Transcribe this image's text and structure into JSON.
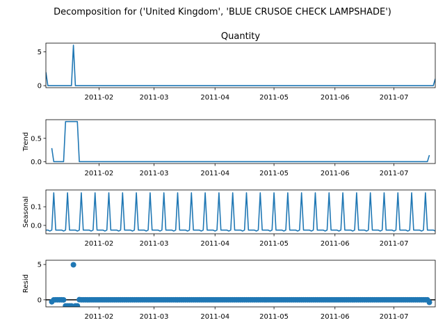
{
  "figure_title": "Decomposition for ('United Kingdom', 'BLUE CRUSOE CHECK LAMPSHADE')",
  "colors": {
    "series": "#1f77b4",
    "axis": "#000000",
    "zero_line": "#000000"
  },
  "chart_data": [
    {
      "type": "line",
      "title": "Quantity",
      "ylabel": "",
      "xlim": [
        "2011-01-05",
        "2011-07-22"
      ],
      "ylim": [
        -0.3,
        6.3
      ],
      "yticks": [
        0,
        5
      ],
      "xticks": [
        "2011-02",
        "2011-03",
        "2011-04",
        "2011-05",
        "2011-06",
        "2011-07"
      ],
      "series": [
        {
          "x": [
            "2011-01-05",
            "2011-01-06",
            "2011-01-18",
            "2011-01-19",
            "2011-01-20",
            "2011-07-21",
            "2011-07-22"
          ],
          "y": [
            2,
            0,
            0,
            6,
            0,
            0,
            1
          ]
        }
      ]
    },
    {
      "type": "line",
      "title": "",
      "ylabel": "Trend",
      "xlim": [
        "2011-01-05",
        "2011-07-22"
      ],
      "ylim": [
        -0.04,
        0.9
      ],
      "yticks": [
        0.0,
        0.5
      ],
      "ytick_labels": [
        "0.0",
        "0.5"
      ],
      "xticks": [
        "2011-02",
        "2011-03",
        "2011-04",
        "2011-05",
        "2011-06",
        "2011-07"
      ],
      "series": [
        {
          "x": [
            "2011-01-08",
            "2011-01-09",
            "2011-01-14",
            "2011-01-15",
            "2011-01-21",
            "2011-01-22",
            "2011-07-18",
            "2011-07-19"
          ],
          "y": [
            0.29,
            0.0,
            0.0,
            0.86,
            0.86,
            0.0,
            0.0,
            0.14
          ]
        }
      ]
    },
    {
      "type": "line",
      "title": "",
      "ylabel": "Seasonal",
      "xlim": [
        "2011-01-05",
        "2011-07-22"
      ],
      "ylim": [
        -0.045,
        0.19
      ],
      "yticks": [
        0.0,
        0.1
      ],
      "ytick_labels": [
        "0.0",
        "0.1"
      ],
      "xticks": [
        "2011-02",
        "2011-03",
        "2011-04",
        "2011-05",
        "2011-06",
        "2011-07"
      ],
      "pattern": {
        "start": "2011-01-05",
        "period_days": 7,
        "one_cycle": [
          -0.025,
          -0.025,
          -0.03,
          -0.025,
          0.175,
          -0.025,
          -0.025
        ]
      }
    },
    {
      "type": "scatter",
      "title": "",
      "ylabel": "Resid",
      "xlim": [
        "2011-01-05",
        "2011-07-22"
      ],
      "ylim": [
        -1.0,
        5.6
      ],
      "yticks": [
        0,
        5
      ],
      "xticks": [
        "2011-02",
        "2011-03",
        "2011-04",
        "2011-05",
        "2011-06",
        "2011-07"
      ],
      "reference_line": 0,
      "range": [
        "2011-01-08",
        "2011-07-19"
      ],
      "default_value": 0,
      "points": [
        {
          "x": "2011-01-08",
          "y": -0.28
        },
        {
          "x": "2011-01-09",
          "y": -0.01
        },
        {
          "x": "2011-01-14",
          "y": -0.01
        },
        {
          "x": "2011-01-15",
          "y": -0.86
        },
        {
          "x": "2011-01-16",
          "y": -0.86
        },
        {
          "x": "2011-01-17",
          "y": -0.86
        },
        {
          "x": "2011-01-18",
          "y": -0.86
        },
        {
          "x": "2011-01-19",
          "y": 4.96
        },
        {
          "x": "2011-01-20",
          "y": -0.86
        },
        {
          "x": "2011-01-21",
          "y": -0.86
        },
        {
          "x": "2011-01-22",
          "y": 0.02
        },
        {
          "x": "2011-07-19",
          "y": -0.36
        }
      ]
    }
  ]
}
